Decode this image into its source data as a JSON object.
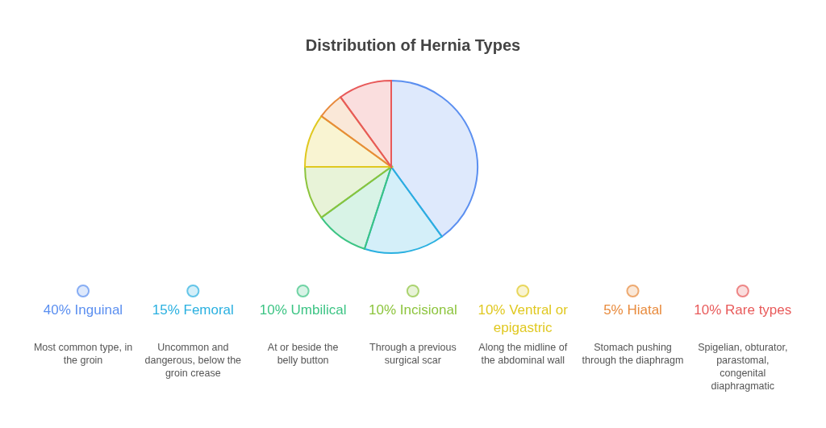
{
  "chart_data": {
    "type": "pie",
    "title": "Distribution of Hernia Types",
    "categories": [
      "40% Inguinal",
      "15% Femoral",
      "10% Umbilical",
      "10% Incisional",
      "10% Ventral or epigastric",
      "5% Hiatal",
      "10% Rare types"
    ],
    "values": [
      40,
      15,
      10,
      10,
      10,
      5,
      10
    ],
    "colors": [
      "#5b8ff0",
      "#2ab0e0",
      "#3cc484",
      "#8cc43c",
      "#e0c820",
      "#e88a3c",
      "#e85a5a"
    ],
    "legend": "bottom",
    "annotations": [
      "Most common type, in the groin",
      "Uncommon and dangerous, below the groin crease",
      "At or beside the belly button",
      "Through a previous surgical scar",
      "Along the midline of the abdominal wall",
      "Stomach pushing through the diaphragm",
      "Spigelian, obturator, parastomal, congenital diaphragmatic"
    ]
  }
}
